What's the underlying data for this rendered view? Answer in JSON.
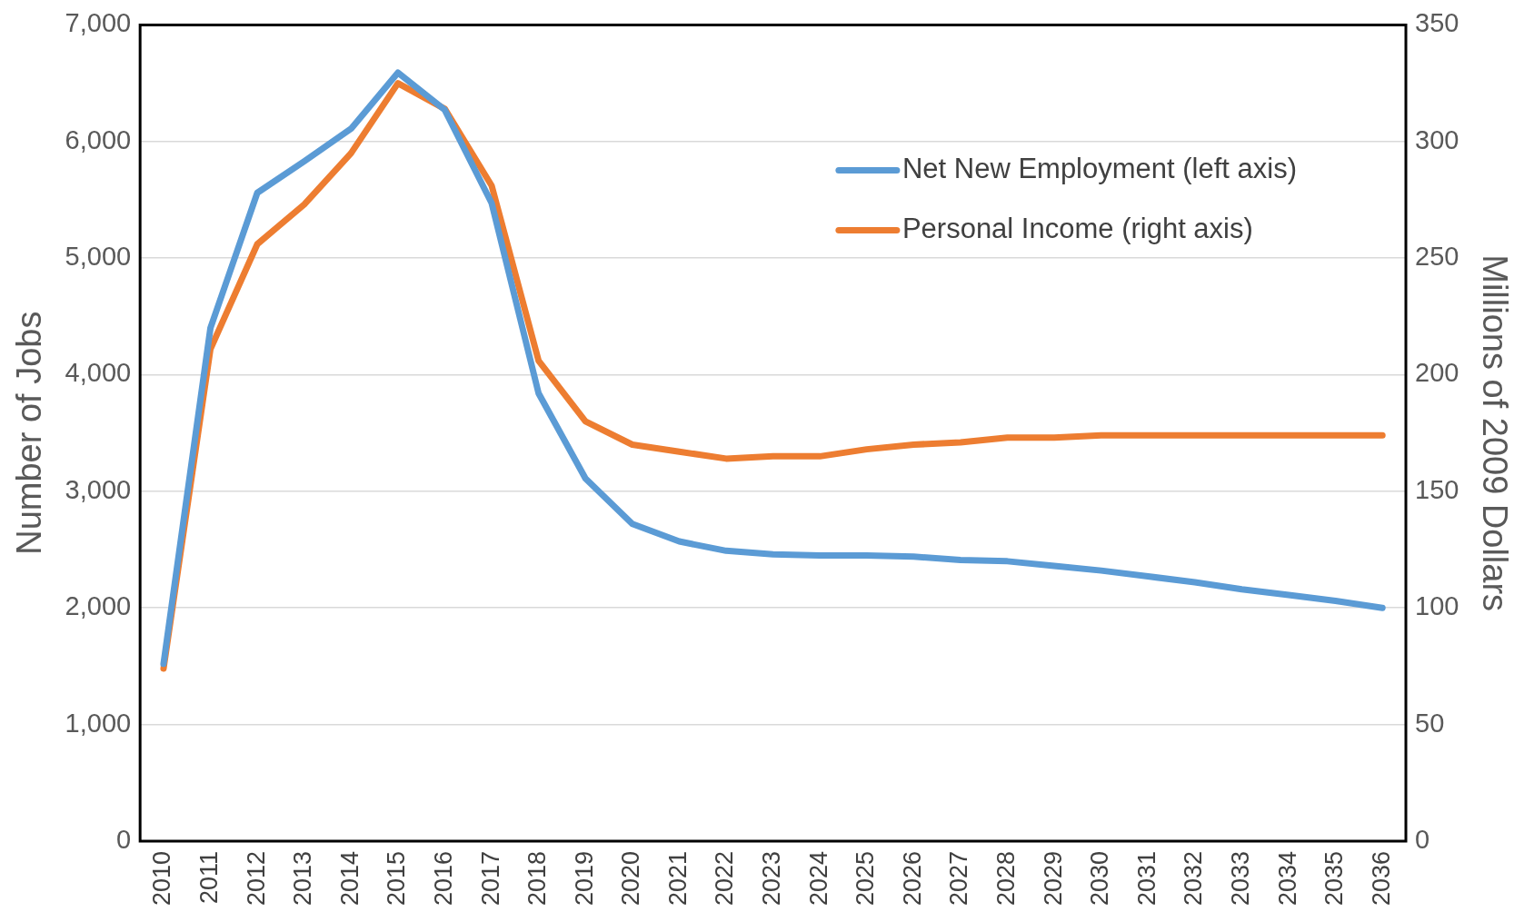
{
  "chart_data": {
    "type": "line",
    "xlabel": null,
    "ylabel": "Number of Jobs",
    "y2label": "Millions of 2009 Dollars",
    "categories": [
      "2010",
      "2011",
      "2012",
      "2013",
      "2014",
      "2015",
      "2016",
      "2017",
      "2018",
      "2019",
      "2020",
      "2021",
      "2022",
      "2023",
      "2024",
      "2025",
      "2026",
      "2027",
      "2028",
      "2029",
      "2030",
      "2031",
      "2032",
      "2033",
      "2034",
      "2035",
      "2036"
    ],
    "series": [
      {
        "name": "Net New Employment (left axis)",
        "color": "#5b9bd5",
        "values": [
          1520,
          4400,
          5560,
          5830,
          6110,
          6590,
          6270,
          5470,
          3840,
          3110,
          2720,
          2570,
          2490,
          2460,
          2450,
          2450,
          2440,
          2410,
          2400,
          2360,
          2320,
          2270,
          2220,
          2160,
          2110,
          2060,
          2000
        ]
      },
      {
        "name": "Personal Income (right axis)",
        "color": "#ed7d31",
        "axis": "y2",
        "values": [
          74,
          211,
          256,
          273,
          295,
          325,
          314,
          281,
          206,
          180,
          170,
          167,
          164,
          165,
          165,
          168,
          170,
          171,
          173,
          173,
          174,
          174,
          174,
          174,
          174,
          174,
          174
        ]
      }
    ],
    "ylim": [
      0,
      7000
    ],
    "yticks": [
      {
        "value": 0,
        "label": "0"
      },
      {
        "value": 1000,
        "label": "1,000"
      },
      {
        "value": 2000,
        "label": "2,000"
      },
      {
        "value": 3000,
        "label": "3,000"
      },
      {
        "value": 4000,
        "label": "4,000"
      },
      {
        "value": 5000,
        "label": "5,000"
      },
      {
        "value": 6000,
        "label": "6,000"
      },
      {
        "value": 7000,
        "label": "7,000"
      }
    ],
    "y2lim": [
      0,
      350
    ],
    "y2ticks": [
      0,
      50,
      100,
      150,
      200,
      250,
      300,
      350
    ],
    "grid": "y",
    "legend": "top right",
    "marker": "none",
    "line_style": "solid"
  }
}
